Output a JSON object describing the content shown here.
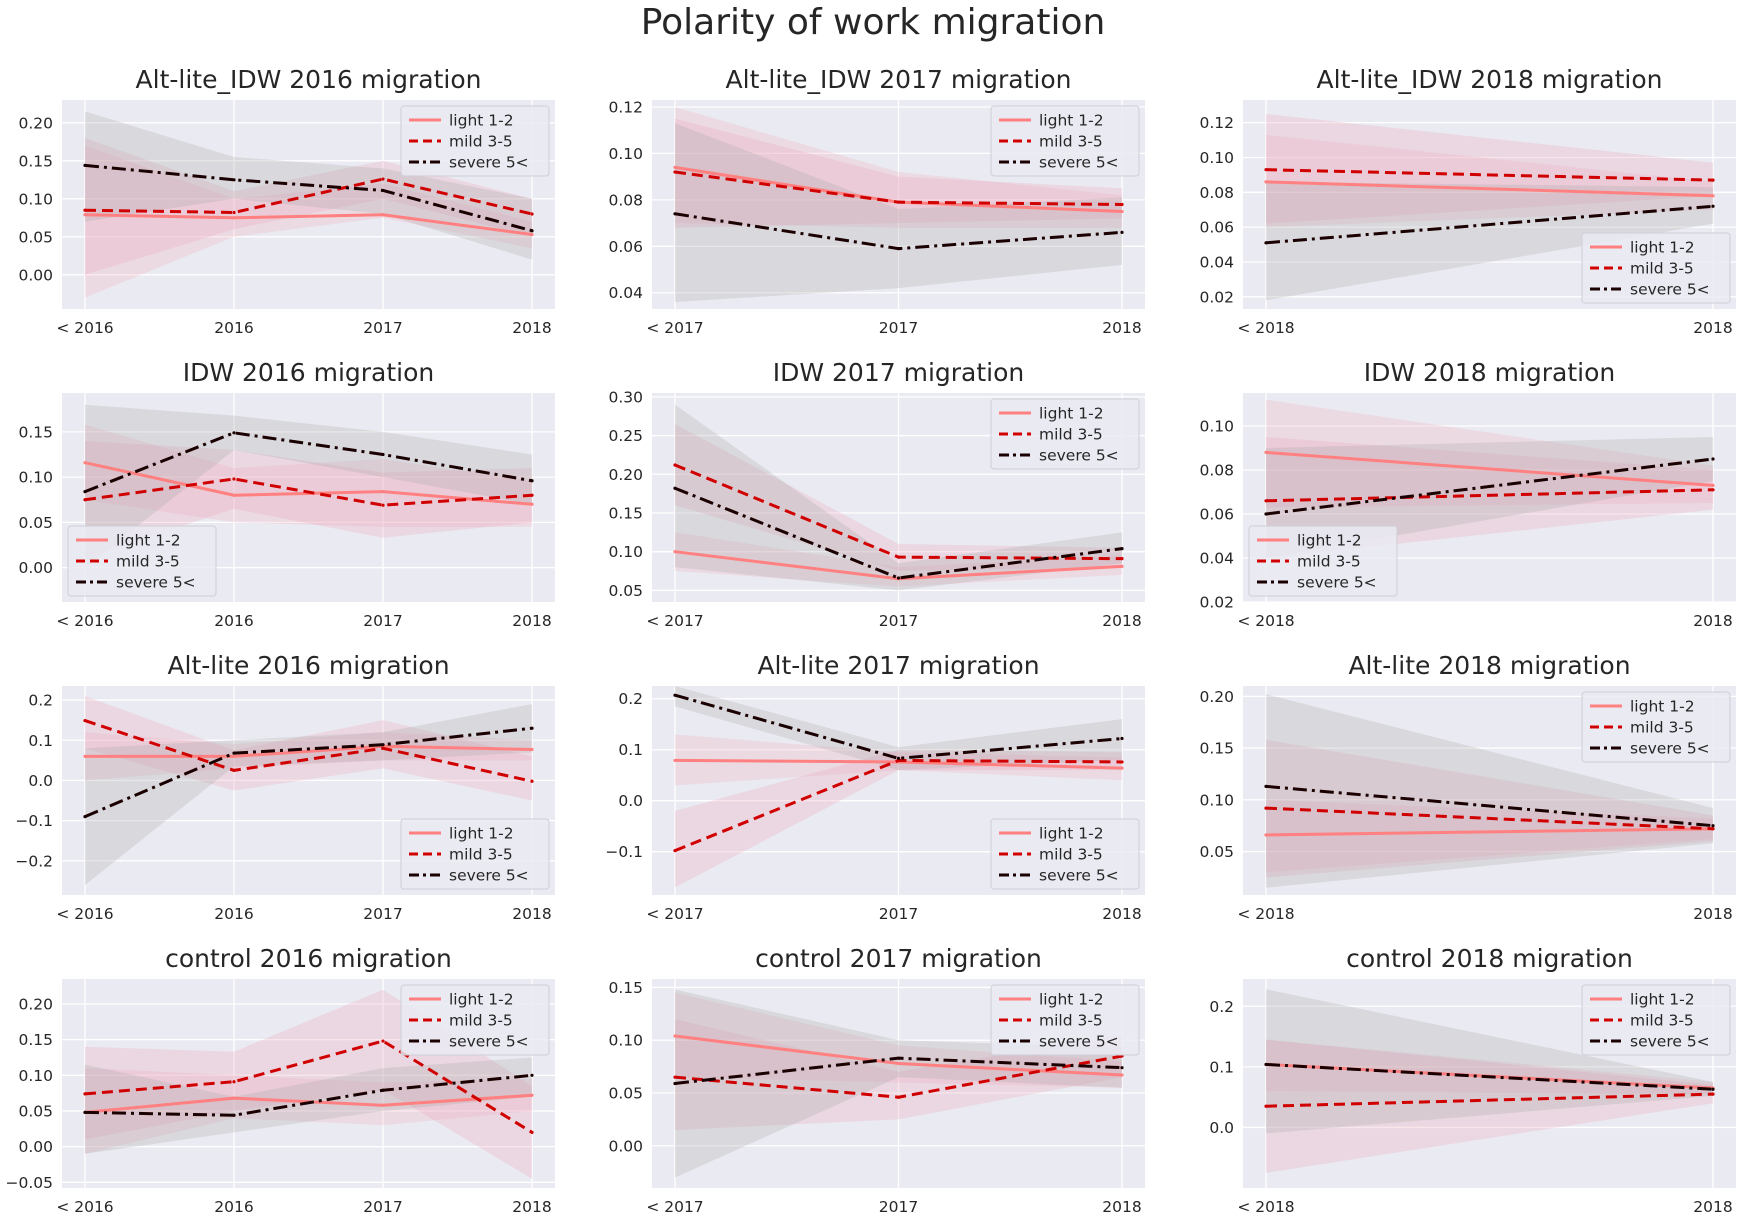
{
  "chart_data": {
    "title": "Polarity of work migration",
    "type": "line",
    "series_styles": [
      {
        "key": "light",
        "color": "#ff8080",
        "dash": "solid"
      },
      {
        "key": "mild",
        "color": "#d00000",
        "dash": "dashed"
      },
      {
        "key": "severe",
        "color": "#1a0000",
        "dash": "dashdot"
      }
    ],
    "band_colors": {
      "light": "#f2b0bf",
      "mild": "#e8a6b6",
      "severe": "#a8a8a8"
    },
    "panels": [
      {
        "title": "Alt-lite_IDW 2016 migration",
        "categories": [
          "< 2016",
          "2016",
          "2017",
          "2018"
        ],
        "yticks": [
          "0.00",
          "0.05",
          "0.10",
          "0.15",
          "0.20"
        ],
        "yticks_values": [
          0,
          0.05,
          0.1,
          0.15,
          0.2
        ],
        "ylim": [
          -0.045,
          0.23
        ],
        "legend_loc": "top-right",
        "series": [
          {
            "name": "light 1-2",
            "values": [
              0.079,
              0.075,
              0.079,
              0.053
            ],
            "lower": [
              -0.03,
              0.05,
              0.075,
              0.035
            ],
            "upper": [
              0.17,
              0.1,
              0.12,
              0.07
            ]
          },
          {
            "name": "mild 3-5",
            "values": [
              0.085,
              0.082,
              0.126,
              0.08
            ],
            "lower": [
              0.0,
              0.06,
              0.1,
              0.05
            ],
            "upper": [
              0.18,
              0.11,
              0.15,
              0.1
            ]
          },
          {
            "name": "severe 5<",
            "values": [
              0.144,
              0.125,
              0.111,
              0.058
            ],
            "lower": [
              0.07,
              0.1,
              0.08,
              0.02
            ],
            "upper": [
              0.215,
              0.155,
              0.14,
              0.1
            ]
          }
        ]
      },
      {
        "title": "Alt-lite_IDW 2017 migration",
        "categories": [
          "< 2017",
          "2017",
          "2018"
        ],
        "yticks": [
          "0.04",
          "0.06",
          "0.08",
          "0.10",
          "0.12"
        ],
        "yticks_values": [
          0.04,
          0.06,
          0.08,
          0.1,
          0.12
        ],
        "ylim": [
          0.033,
          0.123
        ],
        "legend_loc": "top-right",
        "series": [
          {
            "name": "light 1-2",
            "values": [
              0.094,
              0.079,
              0.075
            ],
            "lower": [
              0.07,
              0.068,
              0.068
            ],
            "upper": [
              0.12,
              0.092,
              0.082
            ]
          },
          {
            "name": "mild 3-5",
            "values": [
              0.092,
              0.079,
              0.078
            ],
            "lower": [
              0.068,
              0.07,
              0.072
            ],
            "upper": [
              0.115,
              0.09,
              0.085
            ]
          },
          {
            "name": "severe 5<",
            "values": [
              0.074,
              0.059,
              0.066
            ],
            "lower": [
              0.036,
              0.042,
              0.052
            ],
            "upper": [
              0.113,
              0.076,
              0.081
            ]
          }
        ]
      },
      {
        "title": "Alt-lite_IDW 2018 migration",
        "categories": [
          "< 2018",
          "2018"
        ],
        "yticks": [
          "0.02",
          "0.04",
          "0.06",
          "0.08",
          "0.10",
          "0.12"
        ],
        "yticks_values": [
          0.02,
          0.04,
          0.06,
          0.08,
          0.1,
          0.12
        ],
        "ylim": [
          0.013,
          0.133
        ],
        "legend_loc": "lower-right",
        "series": [
          {
            "name": "light 1-2",
            "values": [
              0.086,
              0.078
            ],
            "lower": [
              0.06,
              0.07
            ],
            "upper": [
              0.113,
              0.086
            ]
          },
          {
            "name": "mild 3-5",
            "values": [
              0.093,
              0.087
            ],
            "lower": [
              0.062,
              0.078
            ],
            "upper": [
              0.125,
              0.097
            ]
          },
          {
            "name": "severe 5<",
            "values": [
              0.051,
              0.072
            ],
            "lower": [
              0.018,
              0.062
            ],
            "upper": [
              0.086,
              0.083
            ]
          }
        ]
      },
      {
        "title": "IDW 2016 migration",
        "categories": [
          "< 2016",
          "2016",
          "2017",
          "2018"
        ],
        "yticks": [
          "0.00",
          "0.05",
          "0.10",
          "0.15"
        ],
        "yticks_values": [
          0,
          0.05,
          0.1,
          0.15
        ],
        "ylim": [
          -0.038,
          0.193
        ],
        "legend_loc": "lower-left",
        "series": [
          {
            "name": "light 1-2",
            "values": [
              0.116,
              0.08,
              0.084,
              0.07
            ],
            "lower": [
              0.075,
              0.05,
              0.045,
              0.045
            ],
            "upper": [
              0.158,
              0.11,
              0.12,
              0.095
            ]
          },
          {
            "name": "mild 3-5",
            "values": [
              0.075,
              0.098,
              0.069,
              0.08
            ],
            "lower": [
              0.01,
              0.065,
              0.033,
              0.05
            ],
            "upper": [
              0.14,
              0.13,
              0.105,
              0.11
            ]
          },
          {
            "name": "severe 5<",
            "values": [
              0.084,
              0.149,
              0.125,
              0.096
            ],
            "lower": [
              0.0,
              0.13,
              0.1,
              0.07
            ],
            "upper": [
              0.18,
              0.168,
              0.15,
              0.125
            ]
          }
        ]
      },
      {
        "title": "IDW 2017 migration",
        "categories": [
          "< 2017",
          "2017",
          "2018"
        ],
        "yticks": [
          "0.05",
          "0.10",
          "0.15",
          "0.20",
          "0.25",
          "0.30"
        ],
        "yticks_values": [
          0.05,
          0.1,
          0.15,
          0.2,
          0.25,
          0.3
        ],
        "ylim": [
          0.035,
          0.305
        ],
        "legend_loc": "top-right",
        "series": [
          {
            "name": "light 1-2",
            "values": [
              0.1,
              0.065,
              0.081
            ],
            "lower": [
              0.075,
              0.055,
              0.07
            ],
            "upper": [
              0.125,
              0.08,
              0.095
            ]
          },
          {
            "name": "mild 3-5",
            "values": [
              0.212,
              0.093,
              0.091
            ],
            "lower": [
              0.16,
              0.075,
              0.08
            ],
            "upper": [
              0.265,
              0.11,
              0.105
            ]
          },
          {
            "name": "severe 5<",
            "values": [
              0.182,
              0.066,
              0.104
            ],
            "lower": [
              0.08,
              0.05,
              0.085
            ],
            "upper": [
              0.29,
              0.085,
              0.125
            ]
          }
        ]
      },
      {
        "title": "IDW 2018 migration",
        "categories": [
          "< 2018",
          "2018"
        ],
        "yticks": [
          "0.02",
          "0.04",
          "0.06",
          "0.08",
          "0.10"
        ],
        "yticks_values": [
          0.02,
          0.04,
          0.06,
          0.08,
          0.1
        ],
        "ylim": [
          0.02,
          0.115
        ],
        "legend_loc": "lower-left",
        "series": [
          {
            "name": "light 1-2",
            "values": [
              0.088,
              0.073
            ],
            "lower": [
              0.063,
              0.065
            ],
            "upper": [
              0.112,
              0.082
            ]
          },
          {
            "name": "mild 3-5",
            "values": [
              0.066,
              0.071
            ],
            "lower": [
              0.04,
              0.062
            ],
            "upper": [
              0.095,
              0.08
            ]
          },
          {
            "name": "severe 5<",
            "values": [
              0.06,
              0.085
            ],
            "lower": [
              0.04,
              0.075
            ],
            "upper": [
              0.09,
              0.095
            ]
          }
        ]
      },
      {
        "title": "Alt-lite 2016 migration",
        "categories": [
          "< 2016",
          "2016",
          "2017",
          "2018"
        ],
        "yticks": [
          "−0.2",
          "−0.1",
          "0.0",
          "0.1",
          "0.2"
        ],
        "yticks_values": [
          -0.2,
          -0.1,
          0,
          0.1,
          0.2
        ],
        "ylim": [
          -0.285,
          0.235
        ],
        "legend_loc": "lower-right",
        "series": [
          {
            "name": "light 1-2",
            "values": [
              0.06,
              0.06,
              0.085,
              0.077
            ],
            "lower": [
              0.0,
              0.03,
              0.05,
              0.05
            ],
            "upper": [
              0.12,
              0.09,
              0.12,
              0.1
            ]
          },
          {
            "name": "mild 3-5",
            "values": [
              0.149,
              0.025,
              0.08,
              -0.002
            ],
            "lower": [
              0.08,
              -0.025,
              0.03,
              -0.05
            ],
            "upper": [
              0.21,
              0.075,
              0.15,
              0.06
            ]
          },
          {
            "name": "severe 5<",
            "values": [
              -0.09,
              0.068,
              0.089,
              0.13
            ],
            "lower": [
              -0.26,
              0.035,
              0.05,
              0.07
            ],
            "upper": [
              0.08,
              0.1,
              0.12,
              0.19
            ]
          }
        ]
      },
      {
        "title": "Alt-lite 2017 migration",
        "categories": [
          "< 2017",
          "2017",
          "2018"
        ],
        "yticks": [
          "−0.1",
          "0.0",
          "0.1",
          "0.2"
        ],
        "yticks_values": [
          -0.1,
          0,
          0.1,
          0.2
        ],
        "ylim": [
          -0.185,
          0.225
        ],
        "legend_loc": "lower-right",
        "series": [
          {
            "name": "light 1-2",
            "values": [
              0.079,
              0.076,
              0.064
            ],
            "lower": [
              0.03,
              0.06,
              0.04
            ],
            "upper": [
              0.13,
              0.095,
              0.085
            ]
          },
          {
            "name": "mild 3-5",
            "values": [
              -0.098,
              0.079,
              0.076
            ],
            "lower": [
              -0.17,
              0.06,
              0.06
            ],
            "upper": [
              -0.02,
              0.1,
              0.095
            ]
          },
          {
            "name": "severe 5<",
            "values": [
              0.207,
              0.083,
              0.122
            ],
            "lower": [
              0.185,
              0.06,
              0.08
            ],
            "upper": [
              0.225,
              0.105,
              0.16
            ]
          }
        ]
      },
      {
        "title": "Alt-lite 2018 migration",
        "categories": [
          "< 2018",
          "2018"
        ],
        "yticks": [
          "0.05",
          "0.10",
          "0.15",
          "0.20"
        ],
        "yticks_values": [
          0.05,
          0.1,
          0.15,
          0.2
        ],
        "ylim": [
          0.008,
          0.21
        ],
        "legend_loc": "top-right",
        "series": [
          {
            "name": "light 1-2",
            "values": [
              0.066,
              0.072
            ],
            "lower": [
              0.03,
              0.062
            ],
            "upper": [
              0.1,
              0.082
            ]
          },
          {
            "name": "mild 3-5",
            "values": [
              0.092,
              0.072
            ],
            "lower": [
              0.025,
              0.06
            ],
            "upper": [
              0.158,
              0.085
            ]
          },
          {
            "name": "severe 5<",
            "values": [
              0.113,
              0.075
            ],
            "lower": [
              0.015,
              0.058
            ],
            "upper": [
              0.202,
              0.092
            ]
          }
        ]
      },
      {
        "title": "control 2016 migration",
        "categories": [
          "< 2016",
          "2016",
          "2017",
          "2018"
        ],
        "yticks": [
          "−0.05",
          "0.00",
          "0.05",
          "0.10",
          "0.15",
          "0.20"
        ],
        "yticks_values": [
          -0.05,
          0,
          0.05,
          0.1,
          0.15,
          0.2
        ],
        "ylim": [
          -0.058,
          0.235
        ],
        "legend_loc": "top-right",
        "series": [
          {
            "name": "light 1-2",
            "values": [
              0.048,
              0.068,
              0.058,
              0.072
            ],
            "lower": [
              -0.01,
              0.04,
              0.03,
              0.05
            ],
            "upper": [
              0.11,
              0.1,
              0.09,
              0.095
            ]
          },
          {
            "name": "mild 3-5",
            "values": [
              0.074,
              0.091,
              0.148,
              0.02
            ],
            "lower": [
              0.01,
              0.05,
              0.08,
              -0.045
            ],
            "upper": [
              0.14,
              0.133,
              0.22,
              0.085
            ]
          },
          {
            "name": "severe 5<",
            "values": [
              0.048,
              0.044,
              0.079,
              0.1
            ],
            "lower": [
              -0.01,
              0.02,
              0.05,
              0.07
            ],
            "upper": [
              0.115,
              0.07,
              0.11,
              0.125
            ]
          }
        ]
      },
      {
        "title": "control 2017 migration",
        "categories": [
          "< 2017",
          "2017",
          "2018"
        ],
        "yticks": [
          "0.00",
          "0.05",
          "0.10",
          "0.15"
        ],
        "yticks_values": [
          0,
          0.05,
          0.1,
          0.15
        ],
        "ylim": [
          -0.04,
          0.158
        ],
        "legend_loc": "top-right",
        "series": [
          {
            "name": "light 1-2",
            "values": [
              0.104,
              0.078,
              0.067
            ],
            "lower": [
              0.065,
              0.06,
              0.055
            ],
            "upper": [
              0.145,
              0.095,
              0.08
            ]
          },
          {
            "name": "mild 3-5",
            "values": [
              0.065,
              0.046,
              0.085
            ],
            "lower": [
              0.015,
              0.025,
              0.065
            ],
            "upper": [
              0.12,
              0.07,
              0.105
            ]
          },
          {
            "name": "severe 5<",
            "values": [
              0.059,
              0.083,
              0.074
            ],
            "lower": [
              -0.03,
              0.065,
              0.055
            ],
            "upper": [
              0.148,
              0.1,
              0.093
            ]
          }
        ]
      },
      {
        "title": "control 2018 migration",
        "categories": [
          "< 2018",
          "2018"
        ],
        "yticks": [
          "0.0",
          "0.1",
          "0.2"
        ],
        "yticks_values": [
          0,
          0.1,
          0.2
        ],
        "ylim": [
          -0.1,
          0.245
        ],
        "legend_loc": "top-right",
        "series": [
          {
            "name": "light 1-2",
            "values": [
              0.104,
              0.065
            ],
            "lower": [
              0.06,
              0.055
            ],
            "upper": [
              0.145,
              0.075
            ]
          },
          {
            "name": "mild 3-5",
            "values": [
              0.035,
              0.055
            ],
            "lower": [
              -0.075,
              0.04
            ],
            "upper": [
              0.145,
              0.07
            ]
          },
          {
            "name": "severe 5<",
            "values": [
              0.104,
              0.063
            ],
            "lower": [
              -0.01,
              0.052
            ],
            "upper": [
              0.228,
              0.075
            ]
          }
        ]
      }
    ]
  }
}
